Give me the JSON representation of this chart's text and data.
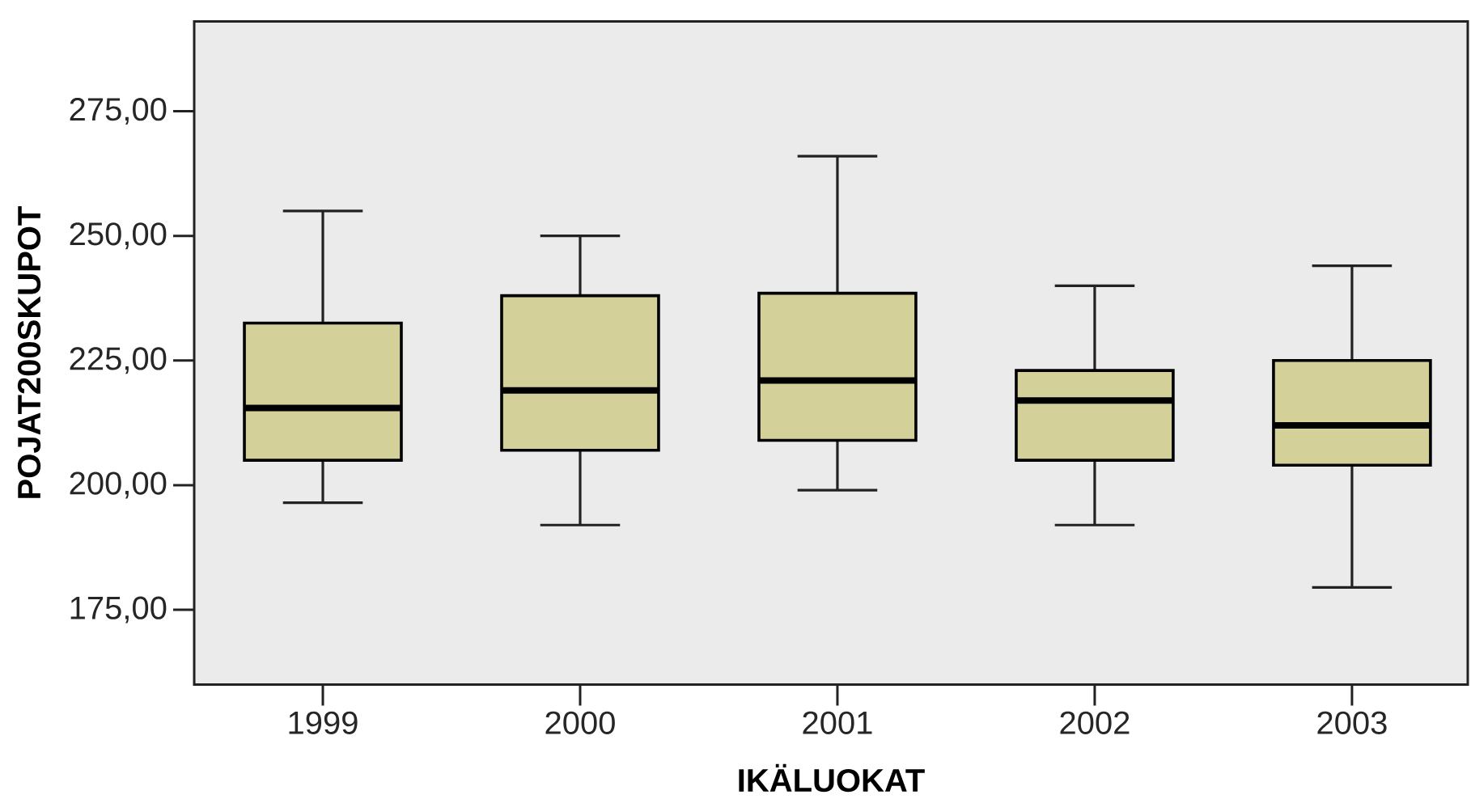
{
  "chart_data": {
    "type": "box",
    "xlabel": "IKÄLUOKAT",
    "ylabel": "POJAT200SKUPOT",
    "categories": [
      "1999",
      "2000",
      "2001",
      "2002",
      "2003"
    ],
    "color": "#d4d09a",
    "boxes": [
      {
        "low": 196.5,
        "q1": 205,
        "median": 215.5,
        "q3": 232.5,
        "high": 255
      },
      {
        "low": 192,
        "q1": 207,
        "median": 219,
        "q3": 238,
        "high": 250
      },
      {
        "low": 199,
        "q1": 209,
        "median": 221,
        "q3": 238.5,
        "high": 266
      },
      {
        "low": 192,
        "q1": 205,
        "median": 217,
        "q3": 223,
        "high": 240
      },
      {
        "low": 179.5,
        "q1": 204,
        "median": 212,
        "q3": 225,
        "high": 244
      }
    ],
    "ylim": [
      160,
      293
    ],
    "yticks": [
      {
        "value": 175,
        "label": "175,00"
      },
      {
        "value": 200,
        "label": "200,00"
      },
      {
        "value": 225,
        "label": "225,00"
      },
      {
        "value": 250,
        "label": "250,00"
      },
      {
        "value": 275,
        "label": "275,00"
      }
    ]
  }
}
